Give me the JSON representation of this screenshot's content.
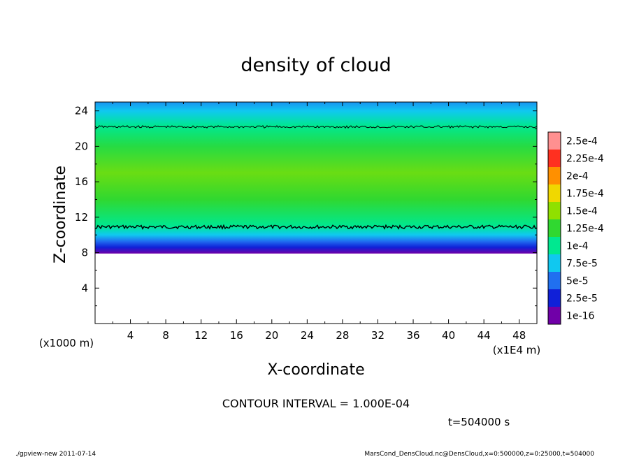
{
  "chart_data": {
    "type": "heatmap",
    "title": "density of cloud",
    "xlabel": "X-coordinate",
    "ylabel": "Z-coordinate",
    "x_unit_label": "(x1E4 m)",
    "y_unit_label": "(x1000 m)",
    "xlim": [
      0,
      50
    ],
    "ylim": [
      0,
      25
    ],
    "x_ticks": [
      "4",
      "8",
      "12",
      "16",
      "20",
      "24",
      "28",
      "32",
      "36",
      "40",
      "44",
      "48"
    ],
    "y_ticks": [
      "4",
      "8",
      "12",
      "16",
      "20",
      "24"
    ],
    "colorbar": {
      "labels": [
        "1e-16",
        "2.5e-5",
        "5e-5",
        "7.5e-5",
        "1e-4",
        "1.25e-4",
        "1.5e-4",
        "1.75e-4",
        "2e-4",
        "2.25e-4",
        "2.5e-4"
      ],
      "colors": [
        "#7000a8",
        "#1020d8",
        "#2070f0",
        "#10c8f0",
        "#00e890",
        "#30d830",
        "#90e000",
        "#f0d800",
        "#ff9000",
        "#ff3020",
        "#ff9090"
      ]
    },
    "field_profile": [
      {
        "z": 7.9,
        "value": 1e-16
      },
      {
        "z": 8.6,
        "value": 2.5e-05
      },
      {
        "z": 9.3,
        "value": 5e-05
      },
      {
        "z": 10.0,
        "value": 7.5e-05
      },
      {
        "z": 11.0,
        "value": 0.0001
      },
      {
        "z": 14.0,
        "value": 0.000125
      },
      {
        "z": 17.0,
        "value": 0.00014
      },
      {
        "z": 20.0,
        "value": 0.00012
      },
      {
        "z": 22.3,
        "value": 0.0001
      },
      {
        "z": 24.0,
        "value": 7.5e-05
      },
      {
        "z": 25.0,
        "value": 6e-05
      }
    ],
    "contour_levels": [
      0.0001
    ],
    "contour_lines_z": [
      10.9,
      22.2
    ],
    "contour_interval_text": "CONTOUR INTERVAL = 1.000E-04",
    "time_text": "t=504000 s"
  },
  "footer": {
    "left": "./gpview-new   2011-07-14",
    "right": "MarsCond_DensCloud.nc@DensCloud,x=0:500000,z=0:25000,t=504000"
  }
}
